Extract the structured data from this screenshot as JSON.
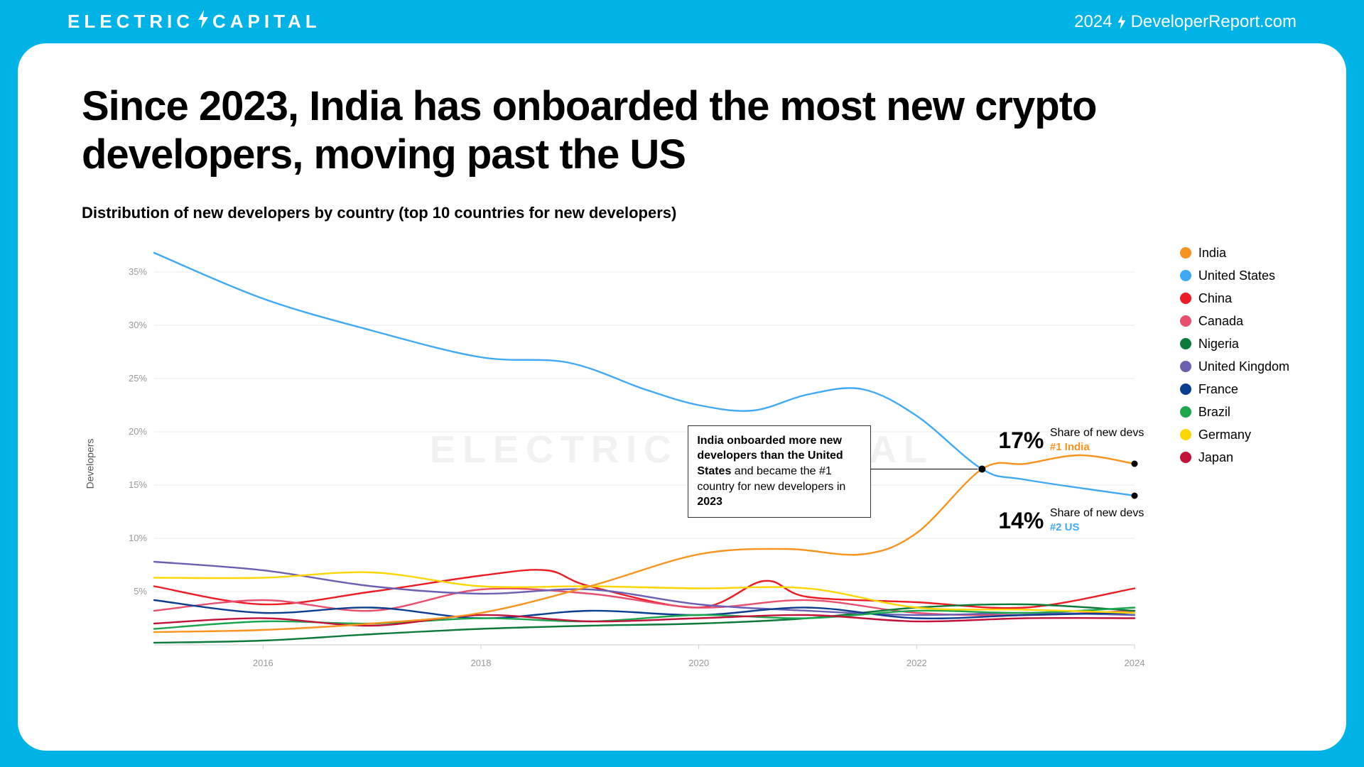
{
  "header": {
    "brand_left": "ELECTRIC",
    "brand_right": "CAPITAL",
    "year": "2024",
    "site": "DeveloperReport.com"
  },
  "title": "Since 2023, India has onboarded the most new crypto developers, moving past the US",
  "subtitle": "Distribution of new developers by country (top 10 countries for new developers)",
  "chart": {
    "type": "line",
    "ylabel": "Developers",
    "xlim": [
      2015,
      2024
    ],
    "ylim": [
      0,
      38
    ],
    "yticks": [
      5,
      10,
      15,
      20,
      25,
      30,
      35
    ],
    "xticks": [
      2016,
      2018,
      2020,
      2022,
      2024
    ],
    "grid_color": "#e8e8e8",
    "axis_label_color": "#999999",
    "axis_label_fontsize": 13,
    "line_width": 2.4,
    "watermark_left": "ELECTRIC",
    "watermark_right": "CAPITAL",
    "series": [
      {
        "name": "India",
        "color": "#f7931e",
        "points": [
          [
            2015,
            1.2
          ],
          [
            2016,
            1.4
          ],
          [
            2017,
            2.0
          ],
          [
            2018,
            3.0
          ],
          [
            2019,
            5.5
          ],
          [
            2020,
            8.5
          ],
          [
            2020.8,
            9.0
          ],
          [
            2021.5,
            8.5
          ],
          [
            2022,
            10.5
          ],
          [
            2022.6,
            16.5
          ],
          [
            2023,
            17.0
          ],
          [
            2023.5,
            17.8
          ],
          [
            2024,
            17.0
          ]
        ]
      },
      {
        "name": "United States",
        "color": "#3fa9f5",
        "points": [
          [
            2015,
            36.8
          ],
          [
            2016,
            32.5
          ],
          [
            2017,
            29.5
          ],
          [
            2018,
            27.0
          ],
          [
            2018.8,
            26.5
          ],
          [
            2019.5,
            24.0
          ],
          [
            2020,
            22.5
          ],
          [
            2020.5,
            22.0
          ],
          [
            2021,
            23.5
          ],
          [
            2021.5,
            24.0
          ],
          [
            2022,
            21.5
          ],
          [
            2022.6,
            16.5
          ],
          [
            2023,
            15.5
          ],
          [
            2024,
            14.0
          ]
        ]
      },
      {
        "name": "China",
        "color": "#ed1c24",
        "points": [
          [
            2015,
            5.5
          ],
          [
            2016,
            3.8
          ],
          [
            2017,
            5.0
          ],
          [
            2018,
            6.5
          ],
          [
            2018.6,
            7.0
          ],
          [
            2019,
            5.5
          ],
          [
            2020,
            3.5
          ],
          [
            2020.6,
            6.0
          ],
          [
            2021,
            4.5
          ],
          [
            2022,
            4.0
          ],
          [
            2023,
            3.5
          ],
          [
            2024,
            5.3
          ]
        ]
      },
      {
        "name": "Canada",
        "color": "#e84f6e",
        "points": [
          [
            2015,
            3.2
          ],
          [
            2016,
            4.2
          ],
          [
            2017,
            3.2
          ],
          [
            2018,
            5.2
          ],
          [
            2019,
            4.8
          ],
          [
            2020,
            3.5
          ],
          [
            2021,
            4.2
          ],
          [
            2022,
            3.0
          ],
          [
            2023,
            2.8
          ],
          [
            2024,
            3.2
          ]
        ]
      },
      {
        "name": "Nigeria",
        "color": "#0d7a3a",
        "points": [
          [
            2015,
            0.2
          ],
          [
            2016,
            0.4
          ],
          [
            2017,
            1.0
          ],
          [
            2018,
            1.5
          ],
          [
            2019,
            1.8
          ],
          [
            2020,
            2.0
          ],
          [
            2021,
            2.5
          ],
          [
            2022,
            3.5
          ],
          [
            2023,
            3.8
          ],
          [
            2024,
            3.2
          ]
        ]
      },
      {
        "name": "United Kingdom",
        "color": "#6b5fb3",
        "points": [
          [
            2015,
            7.8
          ],
          [
            2016,
            7.0
          ],
          [
            2017,
            5.5
          ],
          [
            2018,
            4.8
          ],
          [
            2019,
            5.2
          ],
          [
            2020,
            3.8
          ],
          [
            2021,
            3.2
          ],
          [
            2022,
            2.8
          ],
          [
            2023,
            3.0
          ],
          [
            2024,
            2.8
          ]
        ]
      },
      {
        "name": "France",
        "color": "#0b3d91",
        "points": [
          [
            2015,
            4.2
          ],
          [
            2016,
            3.0
          ],
          [
            2017,
            3.5
          ],
          [
            2018,
            2.5
          ],
          [
            2019,
            3.2
          ],
          [
            2020,
            2.8
          ],
          [
            2021,
            3.5
          ],
          [
            2022,
            2.5
          ],
          [
            2023,
            2.8
          ],
          [
            2024,
            3.0
          ]
        ]
      },
      {
        "name": "Brazil",
        "color": "#1ca64c",
        "points": [
          [
            2015,
            1.5
          ],
          [
            2016,
            2.2
          ],
          [
            2017,
            2.0
          ],
          [
            2018,
            2.5
          ],
          [
            2019,
            2.2
          ],
          [
            2020,
            2.8
          ],
          [
            2021,
            2.5
          ],
          [
            2022,
            3.2
          ],
          [
            2023,
            3.0
          ],
          [
            2024,
            3.5
          ]
        ]
      },
      {
        "name": "Germany",
        "color": "#ffd500",
        "points": [
          [
            2015,
            6.3
          ],
          [
            2016,
            6.3
          ],
          [
            2017,
            6.8
          ],
          [
            2018,
            5.5
          ],
          [
            2019,
            5.5
          ],
          [
            2020,
            5.3
          ],
          [
            2021,
            5.3
          ],
          [
            2022,
            3.5
          ],
          [
            2023,
            3.3
          ],
          [
            2024,
            3.0
          ]
        ]
      },
      {
        "name": "Japan",
        "color": "#c1123a",
        "points": [
          [
            2015,
            2.0
          ],
          [
            2016,
            2.5
          ],
          [
            2017,
            1.8
          ],
          [
            2018,
            2.8
          ],
          [
            2019,
            2.2
          ],
          [
            2020,
            2.5
          ],
          [
            2021,
            2.8
          ],
          [
            2022,
            2.2
          ],
          [
            2023,
            2.5
          ],
          [
            2024,
            2.5
          ]
        ]
      }
    ],
    "intersection_point": [
      2022.6,
      16.5
    ],
    "end_points": [
      {
        "year": 2024,
        "value": 17.0,
        "color": "#000"
      },
      {
        "year": 2024,
        "value": 14.0,
        "color": "#000"
      }
    ],
    "callout": {
      "html": "<b>India onboarded more new developers than the United States</b> and became the #1 country for new developers in <b>2023</b>"
    },
    "end_labels": [
      {
        "pct": "17%",
        "text": "Share of new devs",
        "rank": "#1 India",
        "color": "#f7931e"
      },
      {
        "pct": "14%",
        "text": "Share of new devs",
        "rank": "#2 US",
        "color": "#3fa9f5"
      }
    ]
  },
  "colors": {
    "page_bg": "#00b3e6",
    "card_bg": "#ffffff"
  }
}
